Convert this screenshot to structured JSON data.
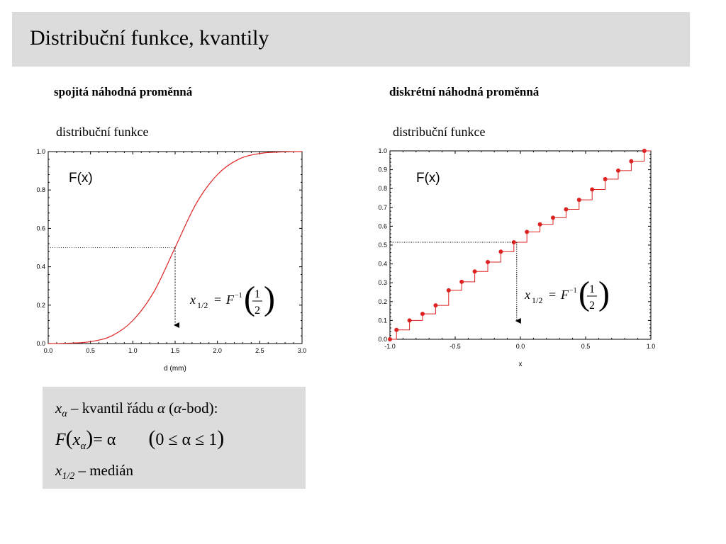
{
  "title": "Distribuční funkce, kvantily",
  "left_heading": "spojitá náhodná proměnná",
  "right_heading": "diskrétní náhodná proměnná",
  "left_subheading": "distribuční funkce",
  "right_subheading": "distribuční funkce",
  "colors": {
    "curve": "#dd2222",
    "title_bg": "#dcdcdc"
  },
  "box": {
    "line1_var": "x",
    "line1_sub": "α",
    "line1_text": " – kvantil řádu ",
    "line1_alpha": "α",
    "line1_paren": " (",
    "line1_alpha2": "α",
    "line1_end": "-bod):",
    "line2_left": "F",
    "line2_var": "x",
    "line2_sub": "α",
    "line2_eq": "= α",
    "line2_range": "0 ≤ α ≤ 1",
    "line3_var": "x",
    "line3_sub": "1/2",
    "line3_text": " – medián"
  },
  "chart_data": [
    {
      "type": "line",
      "function": "normal CDF",
      "mean": 1.5,
      "x": [
        0.0,
        0.25,
        0.5,
        0.75,
        1.0,
        1.25,
        1.5,
        1.75,
        2.0,
        2.25,
        2.5,
        2.75,
        3.0
      ],
      "y": [
        0.0,
        0.002,
        0.01,
        0.04,
        0.12,
        0.27,
        0.5,
        0.73,
        0.88,
        0.96,
        0.99,
        0.998,
        1.0
      ],
      "xlabel": "d (mm)",
      "ylabel": "",
      "label_in_plot": "F(x)",
      "xlim": [
        0.0,
        3.0
      ],
      "ylim": [
        0.0,
        1.0
      ],
      "xticks": [
        "0.0",
        "0.5",
        "1.0",
        "1.5",
        "2.0",
        "2.5",
        "3.0"
      ],
      "yticks": [
        "0.0",
        "0.2",
        "0.4",
        "0.6",
        "0.8",
        "1.0"
      ],
      "median_line": {
        "x": 1.5,
        "y": 0.5
      },
      "formula": {
        "var": "x",
        "sub": "1/2",
        "eq": "=",
        "F": "F",
        "sup": "−1",
        "num": "1",
        "den": "2"
      }
    },
    {
      "type": "step",
      "x": [
        -1.0,
        -0.95,
        -0.85,
        -0.75,
        -0.65,
        -0.55,
        -0.45,
        -0.35,
        -0.25,
        -0.15,
        -0.05,
        0.05,
        0.15,
        0.25,
        0.35,
        0.45,
        0.55,
        0.65,
        0.75,
        0.85,
        0.95
      ],
      "y": [
        0.0,
        0.05,
        0.1,
        0.135,
        0.18,
        0.26,
        0.305,
        0.36,
        0.41,
        0.465,
        0.515,
        0.57,
        0.61,
        0.645,
        0.69,
        0.74,
        0.795,
        0.85,
        0.895,
        0.945,
        1.0
      ],
      "xlabel": "x",
      "ylabel": "",
      "label_in_plot": "F(x)",
      "xlim": [
        -1.0,
        1.0
      ],
      "ylim": [
        0.0,
        1.0
      ],
      "xticks": [
        "-1.0",
        "-0.5",
        "0.0",
        "0.5",
        "1.0"
      ],
      "yticks": [
        "0.0",
        "0.1",
        "0.2",
        "0.3",
        "0.4",
        "0.5",
        "0.6",
        "0.7",
        "0.8",
        "0.9",
        "1.0"
      ],
      "median_line": {
        "x": -0.05,
        "y": 0.515
      },
      "formula": {
        "var": "x",
        "sub": "1/2",
        "eq": "=",
        "F": "F",
        "sup": "−1",
        "num": "1",
        "den": "2"
      }
    }
  ]
}
